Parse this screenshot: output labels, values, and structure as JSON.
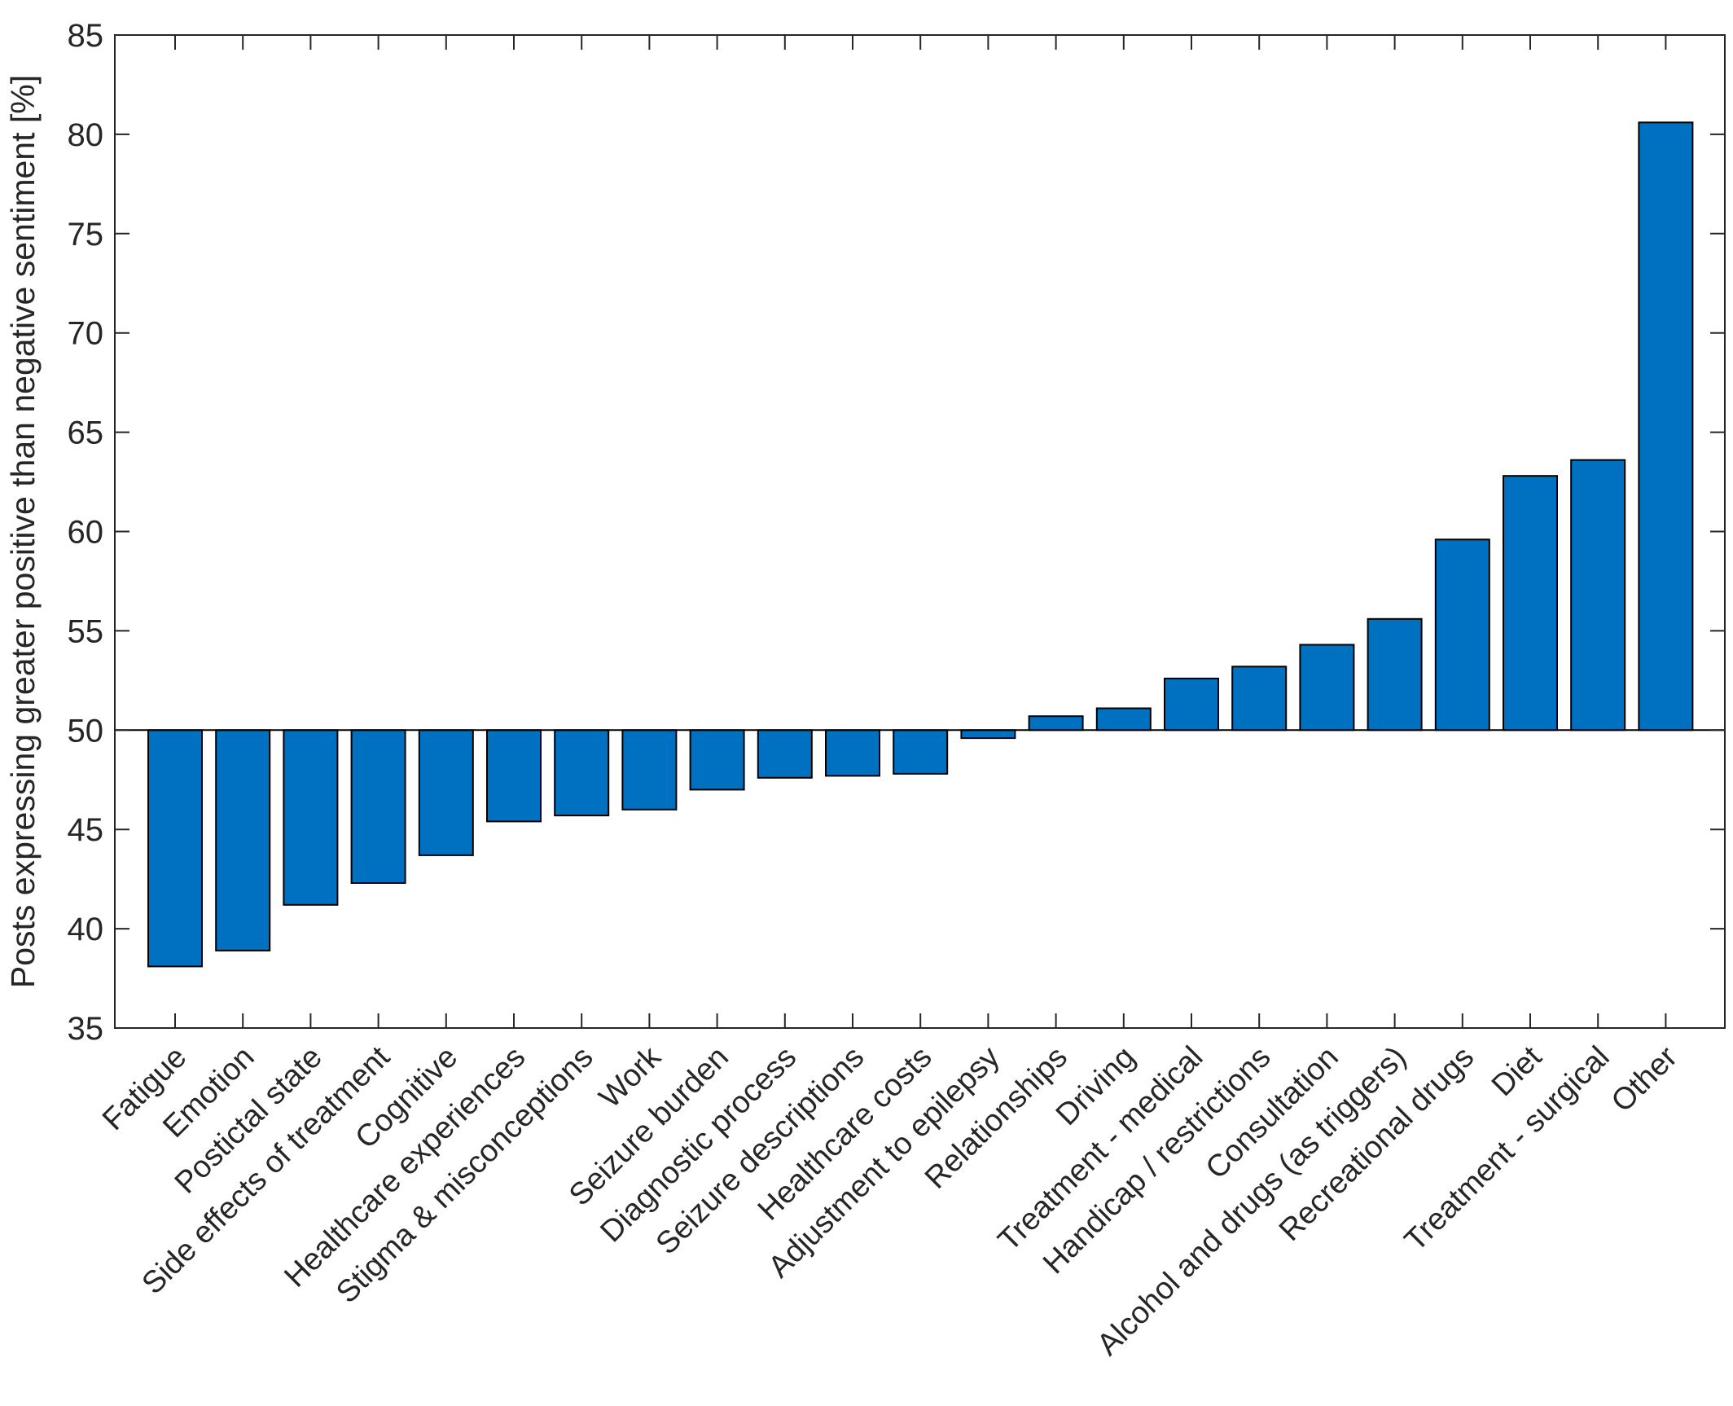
{
  "chart_data": {
    "type": "bar",
    "title": "",
    "xlabel": "",
    "ylabel": "Posts expressing greater positive than negative sentiment [%]",
    "ylim": [
      35,
      85
    ],
    "yticks": [
      35,
      40,
      45,
      50,
      55,
      60,
      65,
      70,
      75,
      80,
      85
    ],
    "baseline": 50,
    "grid": false,
    "bar_color": "#0070c0",
    "categories": [
      "Fatigue",
      "Emotion",
      "Postictal state",
      "Side effects of treatment",
      "Cognitive",
      "Healthcare experiences",
      "Stigma & misconceptions",
      "Work",
      "Seizure burden",
      "Diagnostic process",
      "Seizure descriptions",
      "Healthcare costs",
      "Adjustment to epilepsy",
      "Relationships",
      "Driving",
      "Treatment - medical",
      "Handicap / restrictions",
      "Consultation",
      "Alcohol and drugs (as triggers)",
      "Recreational drugs",
      "Diet",
      "Treatment - surgical",
      "Other"
    ],
    "values": [
      38.1,
      38.9,
      41.2,
      42.3,
      43.7,
      45.4,
      45.7,
      46.0,
      47.0,
      47.6,
      47.7,
      47.8,
      49.6,
      50.7,
      51.1,
      52.6,
      53.2,
      54.3,
      55.6,
      59.6,
      62.8,
      63.6,
      80.6
    ]
  }
}
